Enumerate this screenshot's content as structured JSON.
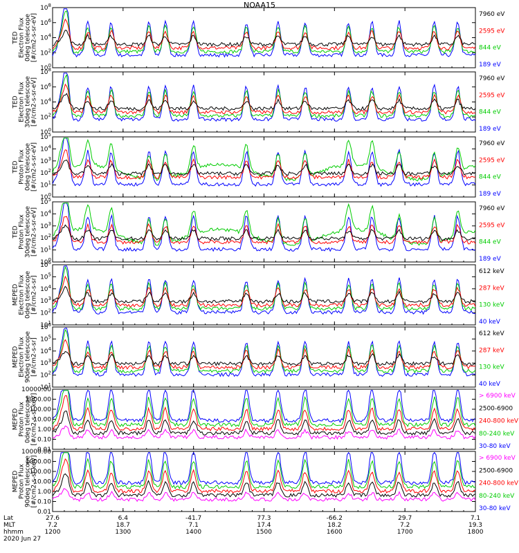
{
  "title": "NOAA15",
  "panels": [
    {
      "ylabel": [
        "TED",
        "Electron Flux",
        "0deg telescope",
        "[#/cm2-s-sr-eV]"
      ],
      "yticks": [
        "10^0",
        "10^2",
        "10^4",
        "10^6",
        "10^8"
      ],
      "legend": [
        {
          "text": "7960 eV",
          "color": "#000000"
        },
        {
          "text": "2595 eV",
          "color": "#ff0000"
        },
        {
          "text": "844 eV",
          "color": "#00cc00"
        },
        {
          "text": "189 eV",
          "color": "#0000ff"
        }
      ]
    },
    {
      "ylabel": [
        "TED",
        "Electron Flux",
        "30deg telescope",
        "[#/cm2-s-sr-eV]"
      ],
      "yticks": [
        "10^0",
        "10^2",
        "10^4",
        "10^6",
        "10^8"
      ],
      "legend": [
        {
          "text": "7960 eV",
          "color": "#000000"
        },
        {
          "text": "2595 eV",
          "color": "#ff0000"
        },
        {
          "text": "844 eV",
          "color": "#00cc00"
        },
        {
          "text": "189 eV",
          "color": "#0000ff"
        }
      ]
    },
    {
      "ylabel": [
        "TED",
        "Proton Flux",
        "0deg telescope",
        "[#/cm2-s-sr-eV]"
      ],
      "yticks": [
        "10^0",
        "10^1",
        "10^2",
        "10^3",
        "10^4",
        "10^5"
      ],
      "legend": [
        {
          "text": "7960 eV",
          "color": "#000000"
        },
        {
          "text": "2595 eV",
          "color": "#ff0000"
        },
        {
          "text": "844 eV",
          "color": "#00cc00"
        },
        {
          "text": "189 eV",
          "color": "#0000ff"
        }
      ]
    },
    {
      "ylabel": [
        "TED",
        "Proton Flux",
        "30deg telescope",
        "[#/cm2-s-sr-eV]"
      ],
      "yticks": [
        "10^0",
        "10^1",
        "10^2",
        "10^3",
        "10^4",
        "10^5"
      ],
      "legend": [
        {
          "text": "7960 eV",
          "color": "#000000"
        },
        {
          "text": "2595 eV",
          "color": "#ff0000"
        },
        {
          "text": "844 eV",
          "color": "#00cc00"
        },
        {
          "text": "189 eV",
          "color": "#0000ff"
        }
      ]
    },
    {
      "ylabel": [
        "MEPED",
        "Electron Flux",
        "0deg telescope",
        "[#/cm2-s-sr]"
      ],
      "yticks": [
        "10^1",
        "10^2",
        "10^3",
        "10^4",
        "10^5",
        "10^6"
      ],
      "legend": [
        {
          "text": "612 keV",
          "color": "#000000"
        },
        {
          "text": "287 keV",
          "color": "#ff0000"
        },
        {
          "text": "130 keV",
          "color": "#00cc00"
        },
        {
          "text": "40 keV",
          "color": "#0000ff"
        }
      ]
    },
    {
      "ylabel": [
        "MEPED",
        "Electron Flux",
        "90deg telescope",
        "[#/cm2-s-sr]"
      ],
      "yticks": [
        "10^1",
        "10^2",
        "10^3",
        "10^4",
        "10^5",
        "10^6"
      ],
      "legend": [
        {
          "text": "612 keV",
          "color": "#000000"
        },
        {
          "text": "287 keV",
          "color": "#ff0000"
        },
        {
          "text": "130 keV",
          "color": "#00cc00"
        },
        {
          "text": "40 keV",
          "color": "#0000ff"
        }
      ]
    },
    {
      "ylabel": [
        "MEPED",
        "Proton Flux",
        "0deg telescope",
        "[#/cm2-s-sr-keV]"
      ],
      "yticks": [
        "0.01",
        "0.10",
        "1.00",
        "10.00",
        "100.00",
        "1000.00",
        "10000.00"
      ],
      "legend": [
        {
          "text": "> 6900 keV",
          "color": "#ff00ff"
        },
        {
          "text": "2500-6900",
          "color": "#000000"
        },
        {
          "text": "240-800 keV",
          "color": "#ff0000"
        },
        {
          "text": "80-240 keV",
          "color": "#00cc00"
        },
        {
          "text": "30-80 keV",
          "color": "#0000ff"
        }
      ]
    },
    {
      "ylabel": [
        "MEPED",
        "Proton Flux",
        "90deg telescope",
        "[#/cm2-s-sr-keV]"
      ],
      "yticks": [
        "0.01",
        "0.10",
        "1.00",
        "10.00",
        "100.00",
        "1000.00",
        "10000.00"
      ],
      "legend": [
        {
          "text": "> 6900 keV",
          "color": "#ff00ff"
        },
        {
          "text": "2500-6900",
          "color": "#000000"
        },
        {
          "text": "240-800 keV",
          "color": "#ff0000"
        },
        {
          "text": "80-240 keV",
          "color": "#00cc00"
        },
        {
          "text": "30-80 keV",
          "color": "#0000ff"
        }
      ]
    }
  ],
  "footer": {
    "row_labels": [
      "Lat",
      "MLT",
      "hhmm",
      "2020 Jun 27"
    ],
    "columns": [
      {
        "lat": "27.6",
        "mlt": "7.2",
        "hhmm": "1200"
      },
      {
        "lat": "6.4",
        "mlt": "18.7",
        "hhmm": "1300"
      },
      {
        "lat": "-41.7",
        "mlt": "7.1",
        "hhmm": "1400"
      },
      {
        "lat": "77.3",
        "mlt": "17.4",
        "hhmm": "1500"
      },
      {
        "lat": "-66.2",
        "mlt": "18.2",
        "hhmm": "1600"
      },
      {
        "lat": "29.7",
        "mlt": "7.2",
        "hhmm": "1700"
      },
      {
        "lat": "7.1",
        "mlt": "19.3",
        "hhmm": "1800"
      }
    ]
  },
  "chart_data": {
    "type": "line",
    "title": "NOAA15",
    "x": [
      "1200",
      "1300",
      "1400",
      "1500",
      "1600",
      "1700",
      "1800"
    ],
    "xlabel": "hhmm",
    "note_series": "Time series of particle flux per energy channel; 8 stacked log-scale panels",
    "peak_times_hhmm": [
      "1212",
      "1230",
      "1250",
      "1322",
      "1336",
      "1400",
      "1445",
      "1512",
      "1535",
      "1612",
      "1632",
      "1655",
      "1725",
      "1745"
    ]
  }
}
